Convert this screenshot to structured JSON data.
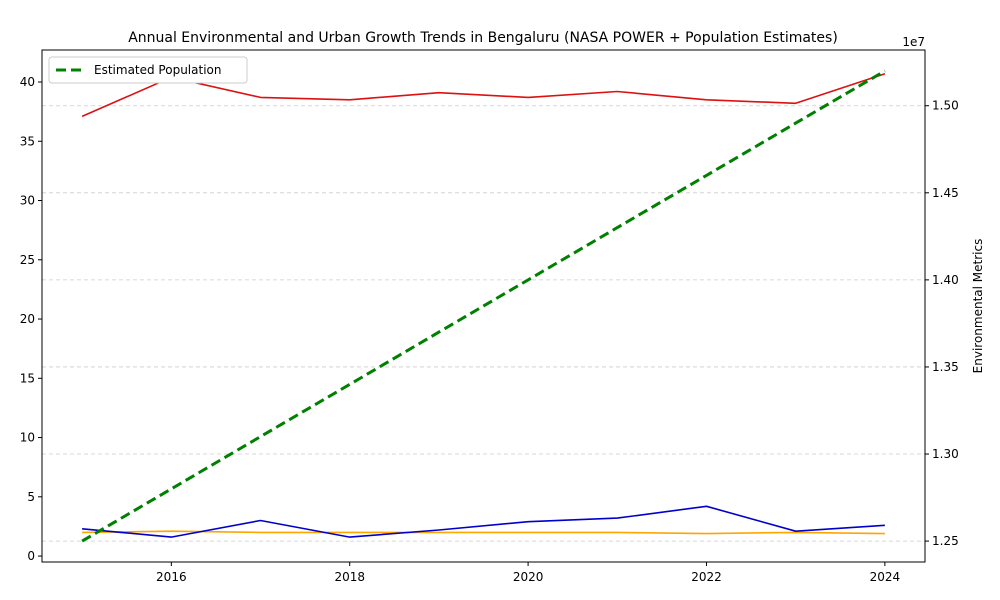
{
  "chart_data": {
    "type": "line",
    "title": "Annual Environmental and Urban Growth Trends in Bengaluru (NASA POWER + Population Estimates)",
    "x": [
      2015,
      2016,
      2017,
      2018,
      2019,
      2020,
      2021,
      2022,
      2023,
      2024
    ],
    "xticks": [
      "2016",
      "2018",
      "2020",
      "2022",
      "2024"
    ],
    "left_axis": {
      "ylim": [
        -0.5,
        42.7
      ],
      "ticks": [
        "0",
        "5",
        "10",
        "15",
        "20",
        "25",
        "30",
        "35",
        "40"
      ]
    },
    "right_axis": {
      "label": "Environmental Metrics",
      "ylim": [
        12380000,
        15320000
      ],
      "ticks": [
        "1.25",
        "1.30",
        "1.35",
        "1.40",
        "1.45",
        "1.50"
      ],
      "offset_label": "1e7"
    },
    "series": [
      {
        "axis": "left",
        "color": "#dd1111",
        "style": "solid",
        "values": [
          37.1,
          40.4,
          38.7,
          38.5,
          39.1,
          38.7,
          39.2,
          38.5,
          38.2,
          40.7
        ]
      },
      {
        "axis": "left",
        "color": "#ffa500",
        "style": "solid",
        "values": [
          2.0,
          2.1,
          2.0,
          2.0,
          2.0,
          2.0,
          2.0,
          1.9,
          2.0,
          1.9
        ]
      },
      {
        "axis": "left",
        "color": "#0000cc",
        "style": "solid",
        "values": [
          2.3,
          1.6,
          3.0,
          1.6,
          2.2,
          2.9,
          3.2,
          4.2,
          2.1,
          2.6
        ]
      },
      {
        "name": "Estimated Population",
        "axis": "right",
        "color": "#008000",
        "style": "dashed",
        "values": [
          12500000,
          12800000,
          13100000,
          13400000,
          13700000,
          14000000,
          14300000,
          14600000,
          14900000,
          15200000
        ]
      }
    ],
    "legend": {
      "placement": "top-left",
      "entries": [
        "Estimated Population"
      ]
    },
    "grid": "horizontal dashed"
  }
}
